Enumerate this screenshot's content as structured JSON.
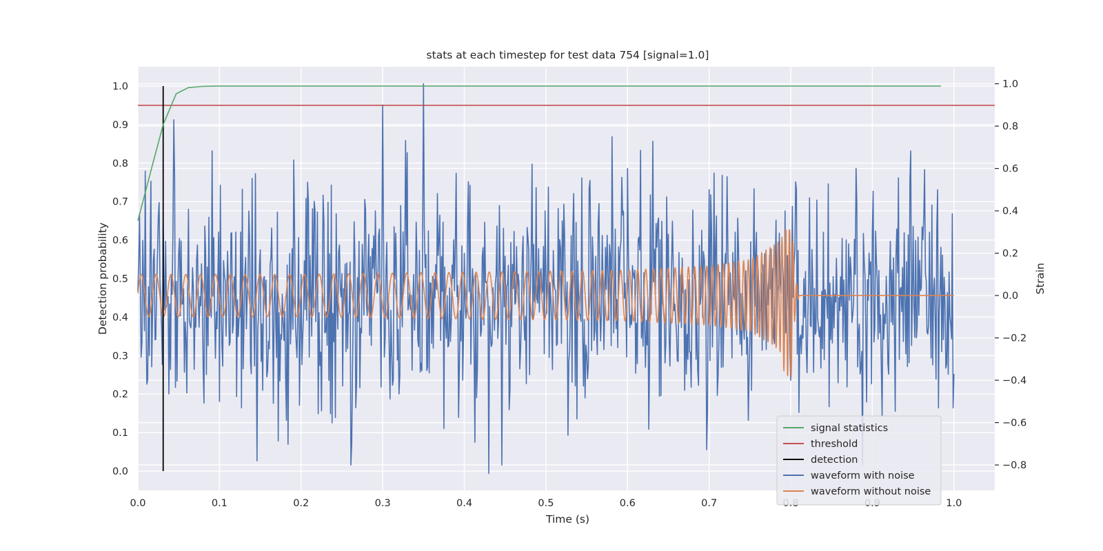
{
  "chart_data": {
    "type": "line",
    "title": "stats at each timestep for test data 754 [signal=1.0]",
    "xlabel": "Time (s)",
    "ylabel_left": "Detection probability",
    "ylabel_right": "Strain",
    "xlim": [
      0.0,
      1.05
    ],
    "ylim_left": [
      -0.05,
      1.05
    ],
    "ylim_right": [
      -0.92,
      1.08
    ],
    "x_ticks": [
      "0.0",
      "0.1",
      "0.2",
      "0.3",
      "0.4",
      "0.5",
      "0.6",
      "0.7",
      "0.8",
      "0.9",
      "1.0"
    ],
    "y_ticks_left": [
      "0.0",
      "0.1",
      "0.2",
      "0.3",
      "0.4",
      "0.5",
      "0.6",
      "0.7",
      "0.8",
      "0.9",
      "1.0"
    ],
    "y_ticks_right": [
      "−0.8",
      "−0.6",
      "−0.4",
      "−0.2",
      "0.0",
      "0.2",
      "0.4",
      "0.6",
      "0.8",
      "1.0"
    ],
    "grid": true,
    "legend_position": "lower-right",
    "series": [
      {
        "name": "signal statistics",
        "axis": "left",
        "color": "#55a868",
        "x": [
          0.0,
          0.016,
          0.031,
          0.047,
          0.062,
          0.078,
          0.094,
          0.109,
          0.125,
          0.141,
          0.156,
          0.2,
          0.3,
          0.4,
          0.5,
          0.6,
          0.7,
          0.8,
          0.9,
          0.984
        ],
        "y": [
          0.65,
          0.78,
          0.9,
          0.98,
          0.996,
          0.999,
          1.0,
          1.0,
          1.0,
          1.0,
          1.0,
          1.0,
          1.0,
          1.0,
          1.0,
          1.0,
          1.0,
          1.0,
          1.0,
          1.0
        ]
      },
      {
        "name": "threshold",
        "axis": "left",
        "color": "#c44e52",
        "x": [
          0.0,
          1.05
        ],
        "y": [
          0.95,
          0.95
        ]
      },
      {
        "name": "detection",
        "axis": "left",
        "color": "#000000",
        "x": [
          0.031,
          0.031
        ],
        "y": [
          0.0,
          1.0
        ]
      },
      {
        "name": "waveform with noise",
        "axis": "right",
        "color": "#4c72b0",
        "x": [
          0.0,
          0.031,
          0.044,
          0.05,
          0.1,
          0.12,
          0.146,
          0.2,
          0.262,
          0.3,
          0.35,
          0.4,
          0.43,
          0.5,
          0.6,
          0.7,
          0.8,
          0.88,
          0.9,
          0.98,
          1.0
        ],
        "y": [
          0.02,
          0.35,
          0.83,
          0.2,
          -0.5,
          0.3,
          -0.78,
          0.1,
          -0.7,
          0.9,
          1.0,
          0.2,
          -0.84,
          0.1,
          0.6,
          0.5,
          -0.4,
          0.6,
          0.3,
          0.5,
          -0.37
        ],
        "noise_std": 0.28
      },
      {
        "name": "waveform without noise",
        "axis": "right",
        "color": "#dd8452",
        "x": [
          0.0,
          0.2,
          0.4,
          0.6,
          0.7,
          0.75,
          0.78,
          0.795,
          0.8,
          0.805,
          0.81,
          0.85,
          0.9,
          1.0
        ],
        "y_envelope": [
          0.1,
          0.1,
          0.11,
          0.12,
          0.14,
          0.17,
          0.24,
          0.3,
          0.34,
          0.1,
          0.0,
          0.0,
          0.0,
          0.0
        ],
        "y_min": -0.4,
        "y_max": 0.31
      }
    ]
  }
}
